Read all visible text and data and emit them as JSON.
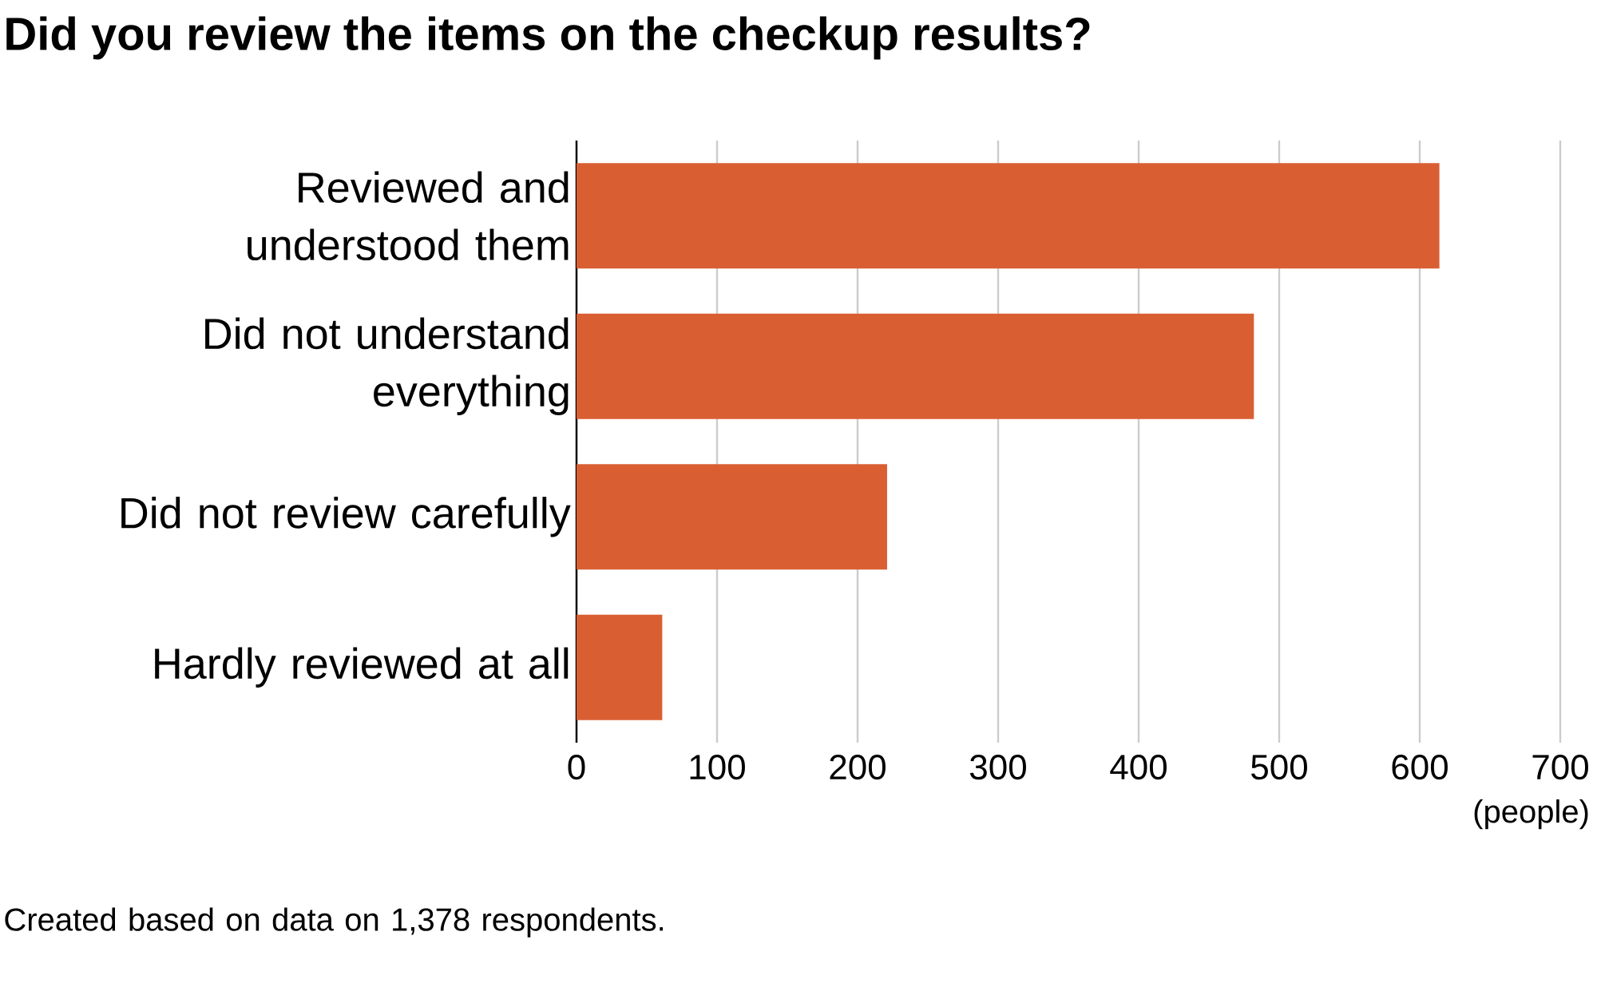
{
  "chart_data": {
    "type": "bar",
    "orientation": "horizontal",
    "title": "Did you review the items on the checkup results?",
    "categories": [
      "Reviewed and understood them",
      "Did not understand everything",
      "Did not review carefully",
      "Hardly reviewed at all"
    ],
    "values": [
      614,
      482,
      221,
      61
    ],
    "color": "#d95f33",
    "xlim": [
      0,
      700
    ],
    "xticks": [
      0,
      100,
      200,
      300,
      400,
      500,
      600,
      700
    ],
    "xlabel": "(people)",
    "grid": "x",
    "annotations": [
      "Created based on data on 1,378 respondents."
    ]
  }
}
